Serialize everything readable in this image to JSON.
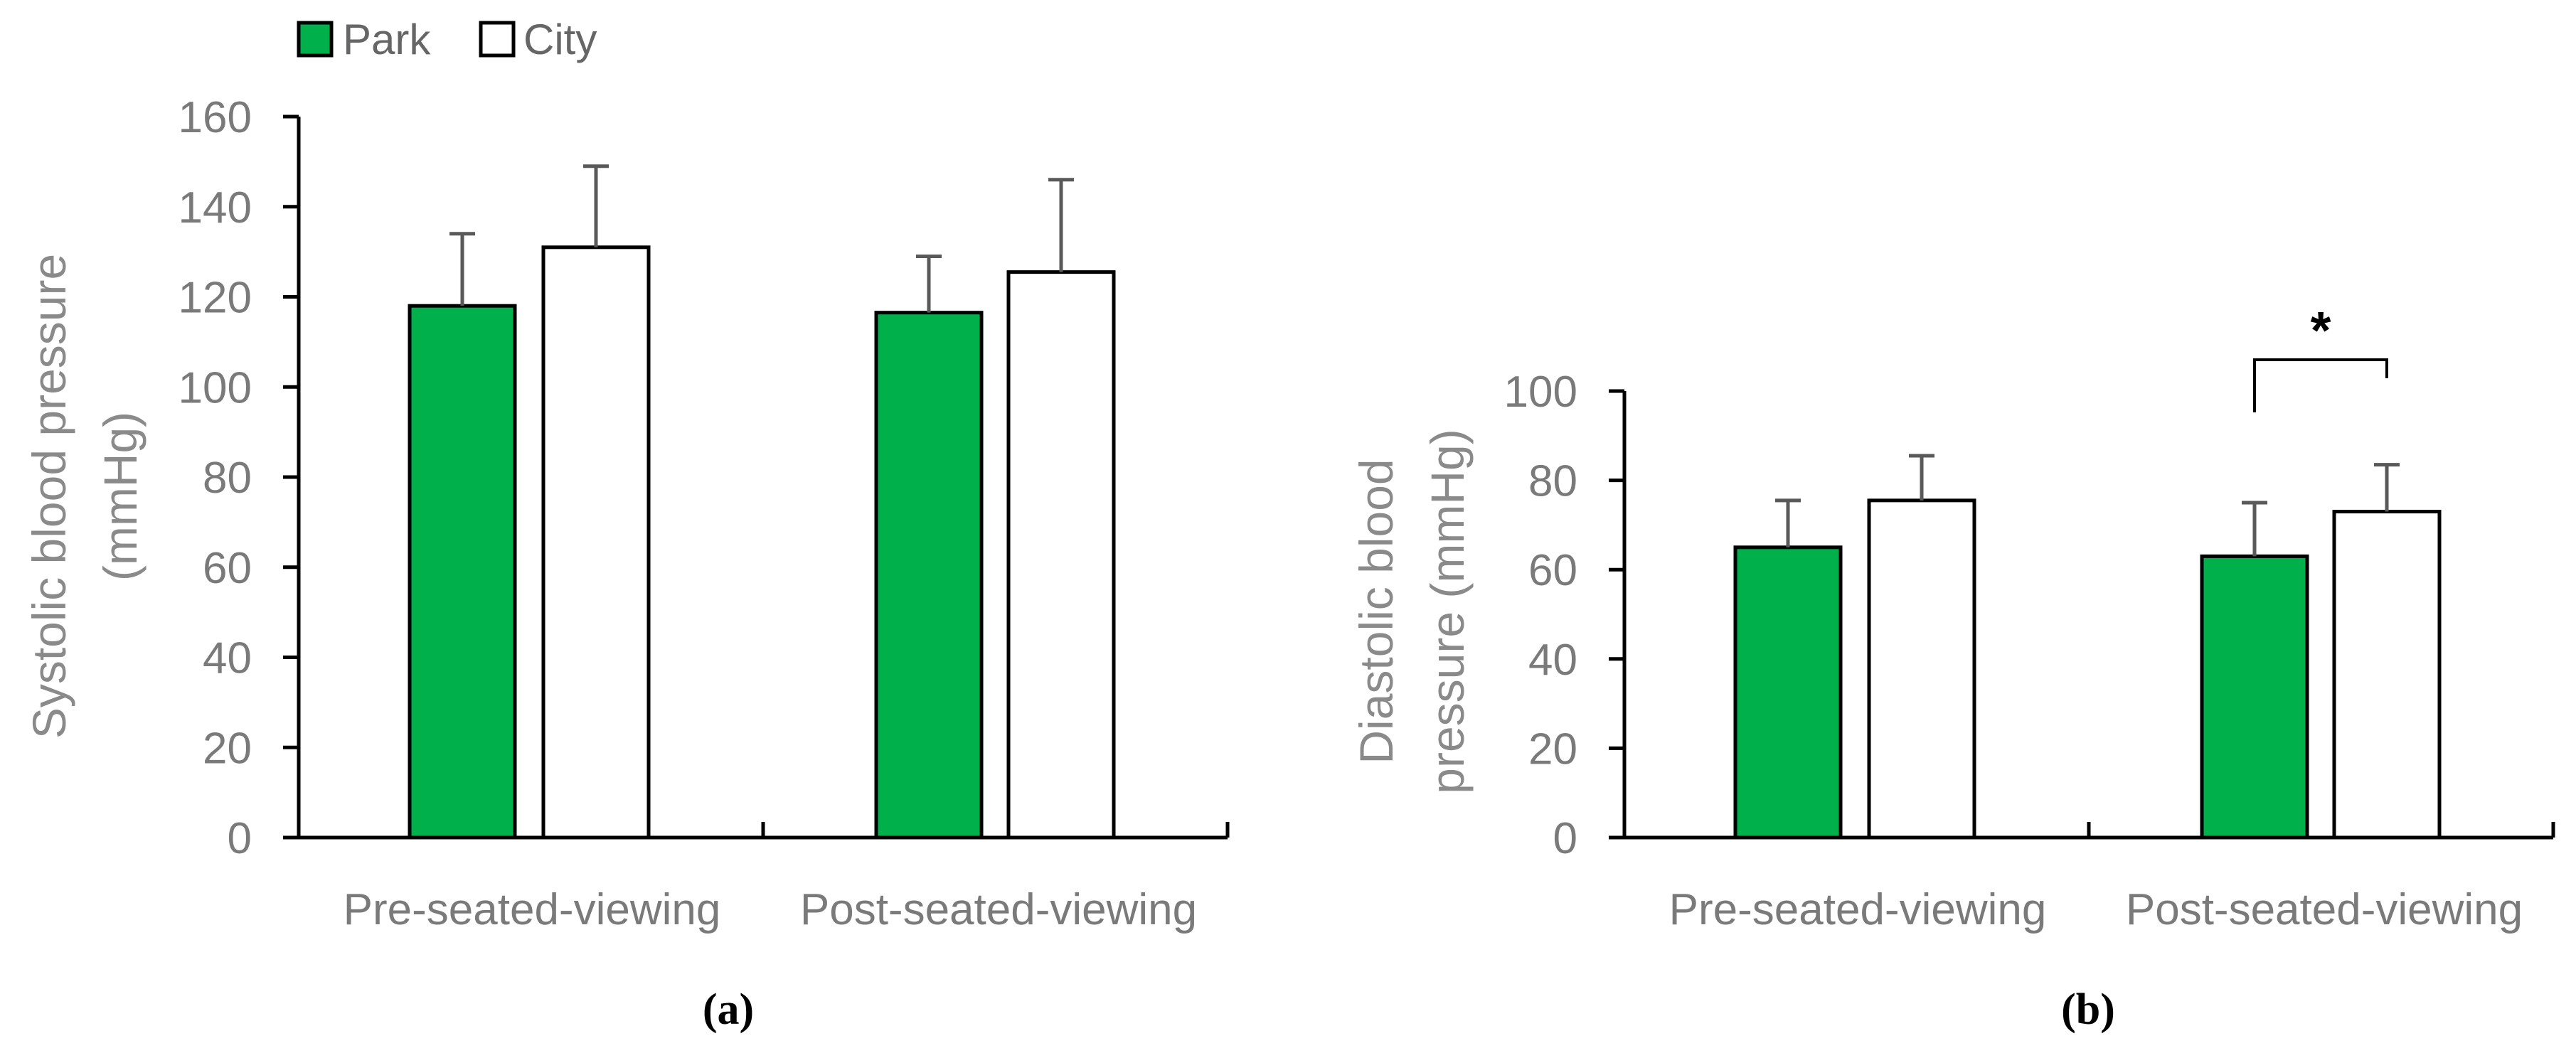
{
  "legend": {
    "items": [
      {
        "label": "Park",
        "color": "#00b04b"
      },
      {
        "label": "City",
        "color": "#ffffff"
      }
    ]
  },
  "chart_data": [
    {
      "type": "bar",
      "panel_label": "(a)",
      "ylabel_lines": [
        "Systolic blood pressure",
        "(mmHg)"
      ],
      "categories": [
        "Pre-seated-viewing",
        "Post-seated-viewing"
      ],
      "ylim": [
        0,
        160
      ],
      "yticks": [
        0,
        20,
        40,
        60,
        80,
        100,
        120,
        140,
        160
      ],
      "series": [
        {
          "name": "Park",
          "color": "#00b04b",
          "values": [
            118,
            116.5
          ],
          "errors": [
            16,
            12.5
          ]
        },
        {
          "name": "City",
          "color": "#ffffff",
          "values": [
            131,
            125.5
          ],
          "errors": [
            18,
            20.5
          ]
        }
      ],
      "significance": []
    },
    {
      "type": "bar",
      "panel_label": "(b)",
      "ylabel_lines": [
        "Diastolic blood",
        "pressure (mmHg)"
      ],
      "categories": [
        "Pre-seated-viewing",
        "Post-seated-viewing"
      ],
      "ylim": [
        0,
        100
      ],
      "yticks": [
        0,
        20,
        40,
        60,
        80,
        100
      ],
      "series": [
        {
          "name": "Park",
          "color": "#00b04b",
          "values": [
            65,
            63
          ],
          "errors": [
            10.5,
            12
          ]
        },
        {
          "name": "City",
          "color": "#ffffff",
          "values": [
            75.5,
            73
          ],
          "errors": [
            10,
            10.5
          ]
        }
      ],
      "significance": [
        {
          "category": 1,
          "label": "*"
        }
      ]
    }
  ]
}
